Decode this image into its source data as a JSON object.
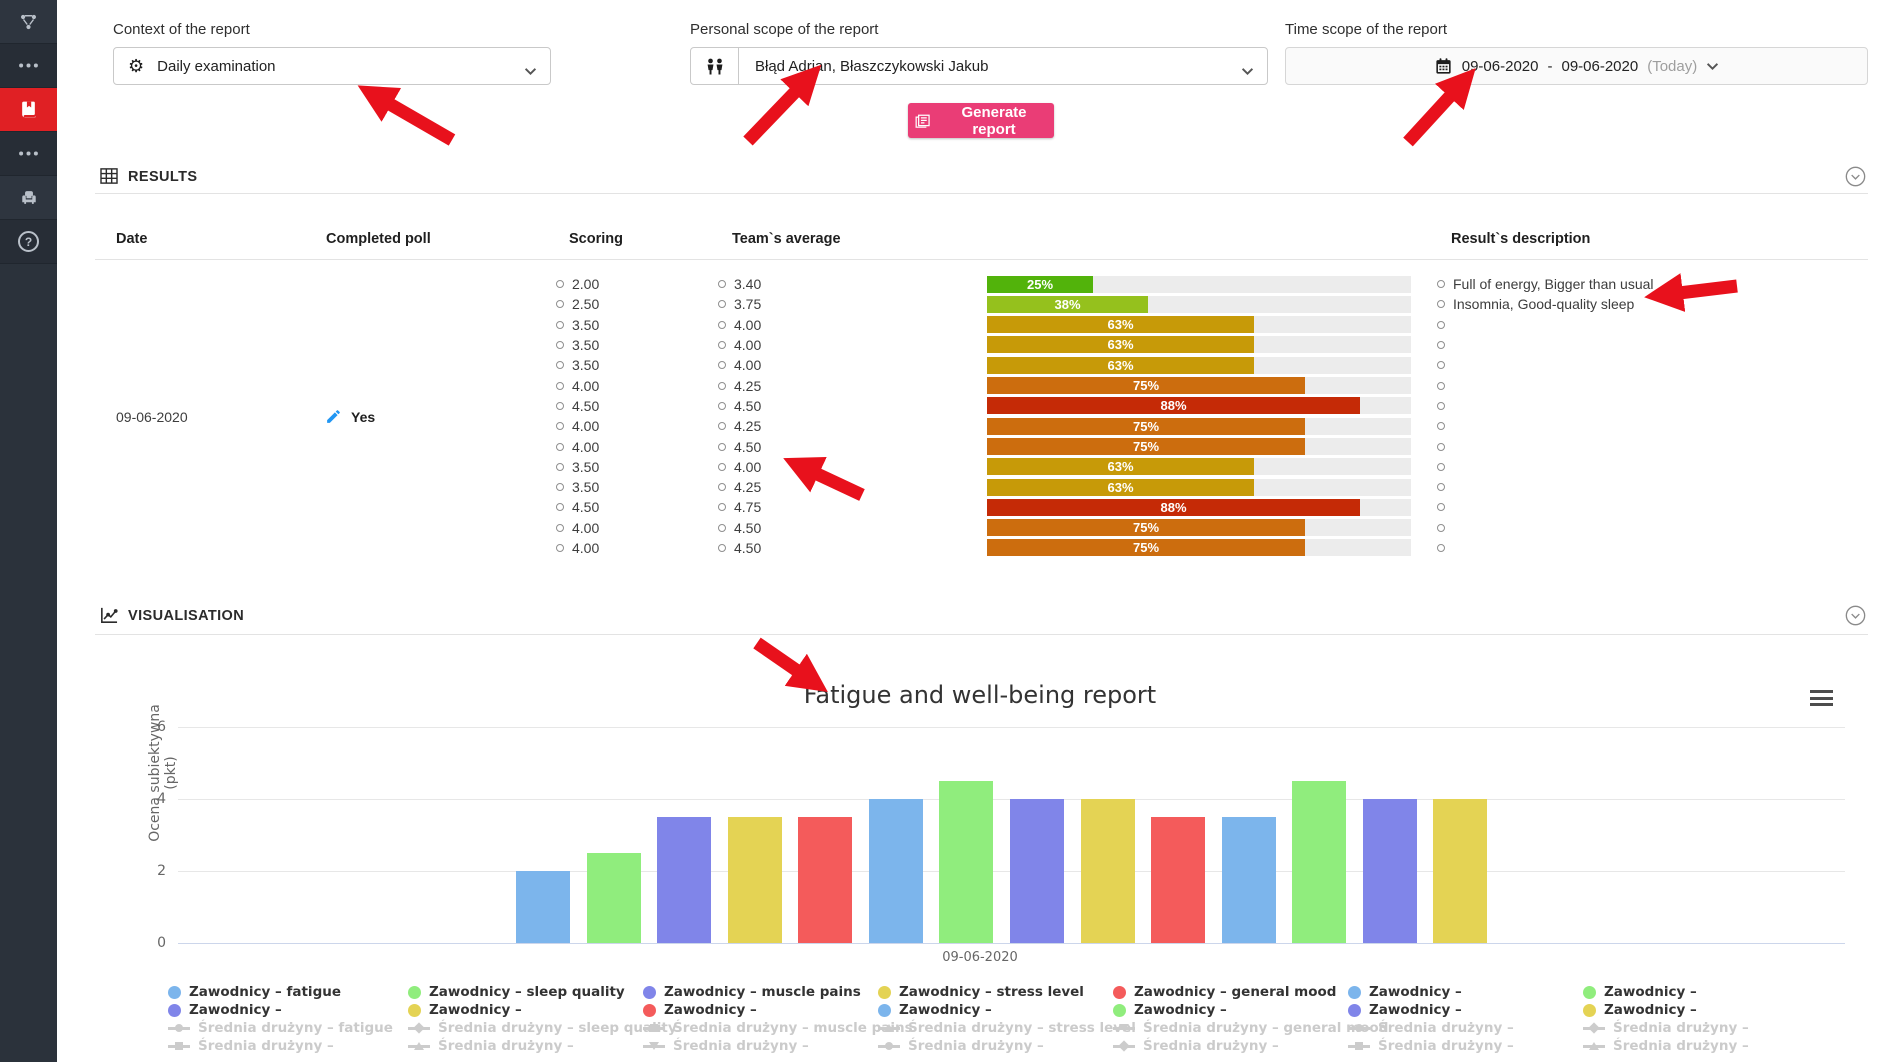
{
  "accent_colors": {
    "arrow": "#e8111c",
    "button": "#ea3d76",
    "sidebar_active": "#e02024",
    "bar_track": "#ececec"
  },
  "sidebar": {
    "items": [
      {
        "icon": "org-chart",
        "name": "org-chart",
        "active": false
      },
      {
        "icon": "ellipsis",
        "name": "more-top",
        "active": false
      },
      {
        "icon": "book",
        "name": "reports",
        "active": true
      },
      {
        "icon": "ellipsis",
        "name": "more-bottom",
        "active": false
      },
      {
        "icon": "armchair",
        "name": "armchair",
        "active": false
      },
      {
        "icon": "help",
        "name": "help",
        "active": false
      }
    ]
  },
  "form": {
    "context_label": "Context of the report",
    "context_value": "Daily examination",
    "personal_label": "Personal scope of the report",
    "personal_value": "Błąd Adrian, Błaszczykowski Jakub",
    "time_label": "Time scope of the report",
    "time_from": "09-06-2020",
    "time_dash": "-",
    "time_to": "09-06-2020",
    "time_suffix": "(Today)",
    "generate_label": "Generate report"
  },
  "results": {
    "title": "RESULTS",
    "columns": [
      "Date",
      "Completed poll",
      "Scoring",
      "Team`s average",
      "Result`s description"
    ],
    "date": "09-06-2020",
    "completed": "Yes",
    "rows": [
      {
        "scoring": "2.00",
        "team_avg": "3.40",
        "pct": 25,
        "pct_label": "25%",
        "bar_color": "#52b30b",
        "desc": "Full of energy, Bigger than usual"
      },
      {
        "scoring": "2.50",
        "team_avg": "3.75",
        "pct": 38,
        "pct_label": "38%",
        "bar_color": "#95c11d",
        "desc": "Insomnia, Good-quality sleep"
      },
      {
        "scoring": "3.50",
        "team_avg": "4.00",
        "pct": 63,
        "pct_label": "63%",
        "bar_color": "#c79a08",
        "desc": ""
      },
      {
        "scoring": "3.50",
        "team_avg": "4.00",
        "pct": 63,
        "pct_label": "63%",
        "bar_color": "#c79a08",
        "desc": ""
      },
      {
        "scoring": "3.50",
        "team_avg": "4.00",
        "pct": 63,
        "pct_label": "63%",
        "bar_color": "#c79a08",
        "desc": ""
      },
      {
        "scoring": "4.00",
        "team_avg": "4.25",
        "pct": 75,
        "pct_label": "75%",
        "bar_color": "#cc6d0e",
        "desc": ""
      },
      {
        "scoring": "4.50",
        "team_avg": "4.50",
        "pct": 88,
        "pct_label": "88%",
        "bar_color": "#c52a06",
        "desc": ""
      },
      {
        "scoring": "4.00",
        "team_avg": "4.25",
        "pct": 75,
        "pct_label": "75%",
        "bar_color": "#cc6d0e",
        "desc": ""
      },
      {
        "scoring": "4.00",
        "team_avg": "4.50",
        "pct": 75,
        "pct_label": "75%",
        "bar_color": "#cc6d0e",
        "desc": ""
      },
      {
        "scoring": "3.50",
        "team_avg": "4.00",
        "pct": 63,
        "pct_label": "63%",
        "bar_color": "#c79a08",
        "desc": ""
      },
      {
        "scoring": "3.50",
        "team_avg": "4.25",
        "pct": 63,
        "pct_label": "63%",
        "bar_color": "#c79a08",
        "desc": ""
      },
      {
        "scoring": "4.50",
        "team_avg": "4.75",
        "pct": 88,
        "pct_label": "88%",
        "bar_color": "#c52a06",
        "desc": ""
      },
      {
        "scoring": "4.00",
        "team_avg": "4.50",
        "pct": 75,
        "pct_label": "75%",
        "bar_color": "#cc6d0e",
        "desc": ""
      },
      {
        "scoring": "4.00",
        "team_avg": "4.50",
        "pct": 75,
        "pct_label": "75%",
        "bar_color": "#cc6d0e",
        "desc": ""
      }
    ]
  },
  "visualisation": {
    "title": "VISUALISATION"
  },
  "chart_data": {
    "type": "bar",
    "title": "Fatigue and well-being report",
    "xlabel": "09-06-2020",
    "ylabel": "Ocena subiektywna (pkt)",
    "ylim": [
      0,
      6
    ],
    "yticks": [
      0,
      2,
      4,
      6
    ],
    "categories": [
      "09-06-2020"
    ],
    "grid": true,
    "legend_position": "bottom",
    "series": [
      {
        "name": "Zawodnicy – fatigue",
        "color": "#7cb5ec",
        "value": 2.0
      },
      {
        "name": "Zawodnicy – sleep quality",
        "color": "#90ed7d",
        "value": 2.5
      },
      {
        "name": "Zawodnicy – muscle pains",
        "color": "#8085e9",
        "value": 3.5
      },
      {
        "name": "Zawodnicy – stress level",
        "color": "#e4d354",
        "value": 3.5
      },
      {
        "name": "Zawodnicy – general mood",
        "color": "#f45b5b",
        "value": 3.5
      },
      {
        "name": "Zawodnicy –",
        "color": "#7cb5ec",
        "value": 4.0
      },
      {
        "name": "Zawodnicy –",
        "color": "#90ed7d",
        "value": 4.5
      },
      {
        "name": "Zawodnicy –",
        "color": "#8085e9",
        "value": 4.0
      },
      {
        "name": "Zawodnicy –",
        "color": "#e4d354",
        "value": 4.0
      },
      {
        "name": "Zawodnicy –",
        "color": "#f45b5b",
        "value": 3.5
      },
      {
        "name": "Zawodnicy –",
        "color": "#7cb5ec",
        "value": 3.5
      },
      {
        "name": "Zawodnicy –",
        "color": "#90ed7d",
        "value": 4.5
      },
      {
        "name": "Zawodnicy –",
        "color": "#8085e9",
        "value": 4.0
      },
      {
        "name": "Zawodnicy –",
        "color": "#e4d354",
        "value": 4.0
      }
    ],
    "legend_columns": [
      [
        {
          "type": "bar",
          "color": "#7cb5ec",
          "label": "Zawodnicy – fatigue"
        },
        {
          "type": "bar",
          "color": "#8085e9",
          "label": "Zawodnicy –"
        },
        {
          "type": "line",
          "marker": "circle",
          "label": "Średnia drużyny – fatigue",
          "disabled": true
        },
        {
          "type": "line",
          "marker": "square",
          "label": "Średnia drużyny –",
          "disabled": true
        }
      ],
      [
        {
          "type": "bar",
          "color": "#90ed7d",
          "label": "Zawodnicy – sleep quality"
        },
        {
          "type": "bar",
          "color": "#e4d354",
          "label": "Zawodnicy –"
        },
        {
          "type": "line",
          "marker": "diamond",
          "label": "Średnia drużyny – sleep quality",
          "disabled": true
        },
        {
          "type": "line",
          "marker": "triangle",
          "label": "Średnia drużyny –",
          "disabled": true
        }
      ],
      [
        {
          "type": "bar",
          "color": "#8085e9",
          "label": "Zawodnicy – muscle pains"
        },
        {
          "type": "bar",
          "color": "#f45b5b",
          "label": "Zawodnicy –"
        },
        {
          "type": "line",
          "marker": "square",
          "label": "Średnia drużyny – muscle pains",
          "disabled": true
        },
        {
          "type": "line",
          "marker": "triangle-down",
          "label": "Średnia drużyny –",
          "disabled": true
        }
      ],
      [
        {
          "type": "bar",
          "color": "#e4d354",
          "label": "Zawodnicy – stress level"
        },
        {
          "type": "bar",
          "color": "#7cb5ec",
          "label": "Zawodnicy –"
        },
        {
          "type": "line",
          "marker": "triangle",
          "label": "Średnia drużyny – stress level",
          "disabled": true
        },
        {
          "type": "line",
          "marker": "circle",
          "label": "Średnia drużyny –",
          "disabled": true
        }
      ],
      [
        {
          "type": "bar",
          "color": "#f45b5b",
          "label": "Zawodnicy – general mood"
        },
        {
          "type": "bar",
          "color": "#90ed7d",
          "label": "Zawodnicy –"
        },
        {
          "type": "line",
          "marker": "triangle-down",
          "label": "Średnia drużyny – general mood",
          "disabled": true
        },
        {
          "type": "line",
          "marker": "diamond",
          "label": "Średnia drużyny –",
          "disabled": true
        }
      ],
      [
        {
          "type": "bar",
          "color": "#7cb5ec",
          "label": "Zawodnicy –"
        },
        {
          "type": "bar",
          "color": "#8085e9",
          "label": "Zawodnicy –"
        },
        {
          "type": "line",
          "marker": "circle",
          "label": "Średnia drużyny –",
          "disabled": true
        },
        {
          "type": "line",
          "marker": "square",
          "label": "Średnia drużyny –",
          "disabled": true
        }
      ],
      [
        {
          "type": "bar",
          "color": "#90ed7d",
          "label": "Zawodnicy –"
        },
        {
          "type": "bar",
          "color": "#e4d354",
          "label": "Zawodnicy –"
        },
        {
          "type": "line",
          "marker": "diamond",
          "label": "Średnia drużyny –",
          "disabled": true
        },
        {
          "type": "line",
          "marker": "triangle",
          "label": "Średnia drużyny –",
          "disabled": true
        }
      ]
    ]
  }
}
